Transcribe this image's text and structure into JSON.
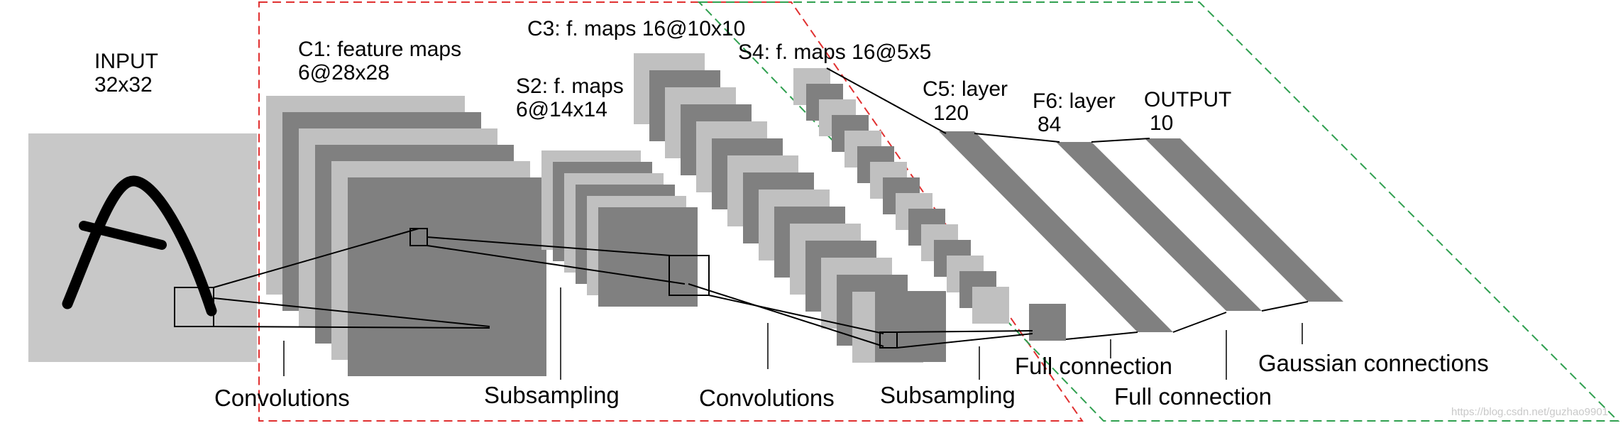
{
  "labels": {
    "input_title": "INPUT",
    "input_size": "32x32",
    "c1_title": "C1: feature maps",
    "c1_size": "6@28x28",
    "s2_title": "S2: f. maps",
    "s2_size": "6@14x14",
    "c3": "C3: f. maps 16@10x10",
    "s4": "S4: f. maps 16@5x5",
    "c5_title": "C5: layer",
    "c5_size": "120",
    "f6_title": "F6: layer",
    "f6_size": "84",
    "output_title": "OUTPUT",
    "output_size": "10"
  },
  "operations": {
    "convolutions_1": "Convolutions",
    "subsampling_1": "Subsampling",
    "convolutions_2": "Convolutions",
    "subsampling_2": "Subsampling",
    "full_connection_1": "Full connection",
    "full_connection_2": "Full connection",
    "gaussian": "Gaussian connections"
  },
  "watermark": "https://blog.csdn.net/guzhao9901",
  "colors": {
    "input_bg": "#c8c8c8",
    "map_light": "#c0c0c0",
    "map_dark": "#808080",
    "red_box": "#e03030",
    "green_box": "#30a050"
  }
}
